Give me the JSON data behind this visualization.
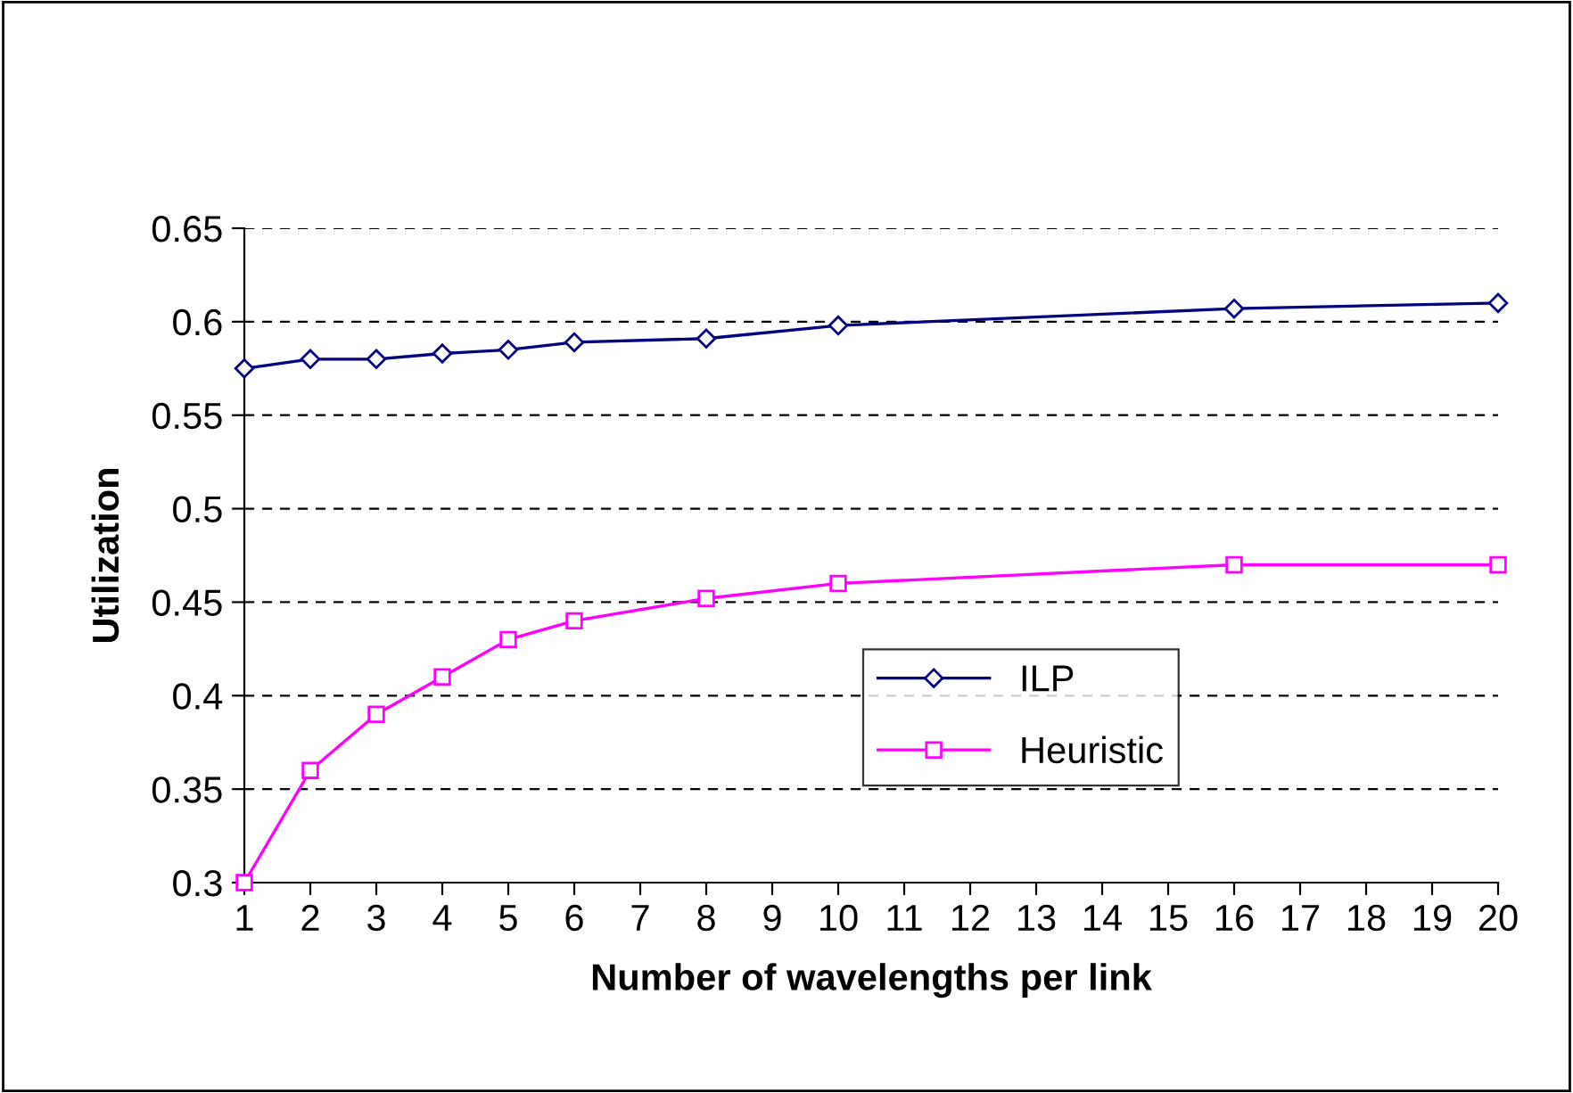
{
  "chart_data": {
    "type": "line",
    "xlabel": "Number of wavelengths per link",
    "ylabel": "Utilization",
    "xlim": [
      1,
      20
    ],
    "xticks": [
      1,
      2,
      3,
      4,
      5,
      6,
      7,
      8,
      9,
      10,
      11,
      12,
      13,
      14,
      15,
      16,
      17,
      18,
      19,
      20
    ],
    "ylim": [
      0.3,
      0.65
    ],
    "yticks": [
      0.3,
      0.35,
      0.4,
      0.45,
      0.5,
      0.55,
      0.6,
      0.65
    ],
    "grid": "y",
    "legend": "lower right",
    "line_style": "solid",
    "series": [
      {
        "name": "ILP",
        "color": "#000080",
        "marker": "diamond",
        "x": [
          1,
          2,
          3,
          4,
          5,
          6,
          8,
          10,
          16,
          20
        ],
        "values": [
          0.575,
          0.58,
          0.58,
          0.583,
          0.585,
          0.589,
          0.591,
          0.598,
          0.607,
          0.61
        ]
      },
      {
        "name": "Heuristic",
        "color": "#ff00ff",
        "marker": "square",
        "x": [
          1,
          2,
          3,
          4,
          5,
          6,
          8,
          10,
          16,
          20
        ],
        "values": [
          0.3,
          0.36,
          0.39,
          0.41,
          0.43,
          0.44,
          0.452,
          0.46,
          0.47,
          0.47
        ]
      }
    ]
  }
}
